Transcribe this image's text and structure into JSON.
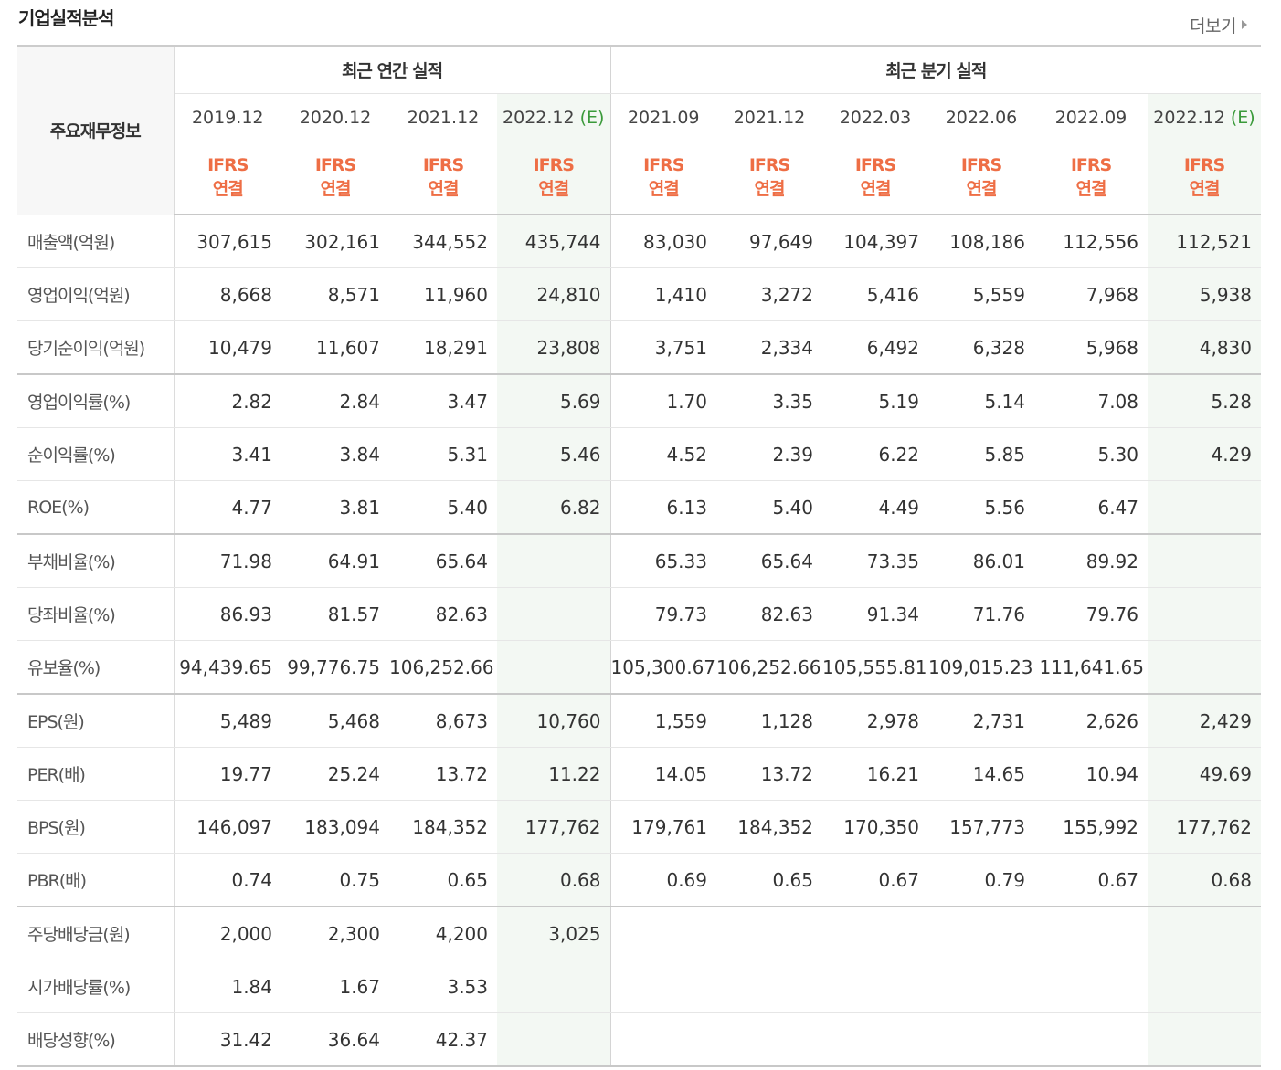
{
  "section_title": "기업실적분석",
  "more_label": "더보기",
  "table": {
    "corner_label": "주요재무정보",
    "annual_group_label": "최근 연간 실적",
    "quarter_group_label": "최근 분기 실적",
    "accounting_line1": "IFRS",
    "accounting_line2": "연결",
    "estimate_mark": "(E)",
    "annual_periods": [
      "2019.12",
      "2020.12",
      "2021.12",
      "2022.12"
    ],
    "quarter_periods": [
      "2021.09",
      "2021.12",
      "2022.03",
      "2022.06",
      "2022.09",
      "2022.12"
    ],
    "rows": [
      {
        "label": "매출액(억원)",
        "values": [
          "307,615",
          "302,161",
          "344,552",
          "435,744",
          "83,030",
          "97,649",
          "104,397",
          "108,186",
          "112,556",
          "112,521"
        ]
      },
      {
        "label": "영업이익(억원)",
        "values": [
          "8,668",
          "8,571",
          "11,960",
          "24,810",
          "1,410",
          "3,272",
          "5,416",
          "5,559",
          "7,968",
          "5,938"
        ]
      },
      {
        "label": "당기순이익(억원)",
        "values": [
          "10,479",
          "11,607",
          "18,291",
          "23,808",
          "3,751",
          "2,334",
          "6,492",
          "6,328",
          "5,968",
          "4,830"
        ]
      },
      {
        "label": "영업이익률(%)",
        "values": [
          "2.82",
          "2.84",
          "3.47",
          "5.69",
          "1.70",
          "3.35",
          "5.19",
          "5.14",
          "7.08",
          "5.28"
        ]
      },
      {
        "label": "순이익률(%)",
        "values": [
          "3.41",
          "3.84",
          "5.31",
          "5.46",
          "4.52",
          "2.39",
          "6.22",
          "5.85",
          "5.30",
          "4.29"
        ]
      },
      {
        "label": "ROE(%)",
        "values": [
          "4.77",
          "3.81",
          "5.40",
          "6.82",
          "6.13",
          "5.40",
          "4.49",
          "5.56",
          "6.47",
          ""
        ]
      },
      {
        "label": "부채비율(%)",
        "values": [
          "71.98",
          "64.91",
          "65.64",
          "",
          "65.33",
          "65.64",
          "73.35",
          "86.01",
          "89.92",
          ""
        ]
      },
      {
        "label": "당좌비율(%)",
        "values": [
          "86.93",
          "81.57",
          "82.63",
          "",
          "79.73",
          "82.63",
          "91.34",
          "71.76",
          "79.76",
          ""
        ]
      },
      {
        "label": "유보율(%)",
        "values": [
          "94,439.65",
          "99,776.75",
          "106,252.66",
          "",
          "105,300.67",
          "106,252.66",
          "105,555.81",
          "109,015.23",
          "111,641.65",
          ""
        ]
      },
      {
        "label": "EPS(원)",
        "values": [
          "5,489",
          "5,468",
          "8,673",
          "10,760",
          "1,559",
          "1,128",
          "2,978",
          "2,731",
          "2,626",
          "2,429"
        ]
      },
      {
        "label": "PER(배)",
        "values": [
          "19.77",
          "25.24",
          "13.72",
          "11.22",
          "14.05",
          "13.72",
          "16.21",
          "14.65",
          "10.94",
          "49.69"
        ]
      },
      {
        "label": "BPS(원)",
        "values": [
          "146,097",
          "183,094",
          "184,352",
          "177,762",
          "179,761",
          "184,352",
          "170,350",
          "157,773",
          "155,992",
          "177,762"
        ]
      },
      {
        "label": "PBR(배)",
        "values": [
          "0.74",
          "0.75",
          "0.65",
          "0.68",
          "0.69",
          "0.65",
          "0.67",
          "0.79",
          "0.67",
          "0.68"
        ]
      },
      {
        "label": "주당배당금(원)",
        "values": [
          "2,000",
          "2,300",
          "4,200",
          "3,025",
          "",
          "",
          "",
          "",
          "",
          ""
        ]
      },
      {
        "label": "시가배당률(%)",
        "values": [
          "1.84",
          "1.67",
          "3.53",
          "",
          "",
          "",
          "",
          "",
          "",
          ""
        ]
      },
      {
        "label": "배당성향(%)",
        "values": [
          "31.42",
          "36.64",
          "42.37",
          "",
          "",
          "",
          "",
          "",
          "",
          ""
        ]
      }
    ]
  },
  "colors": {
    "accounting_text": "#ee6e45",
    "estimate_mark": "#3a9a3a",
    "estimate_column_bg": "#f3f8f3",
    "header_bg": "#f7f7f7"
  }
}
